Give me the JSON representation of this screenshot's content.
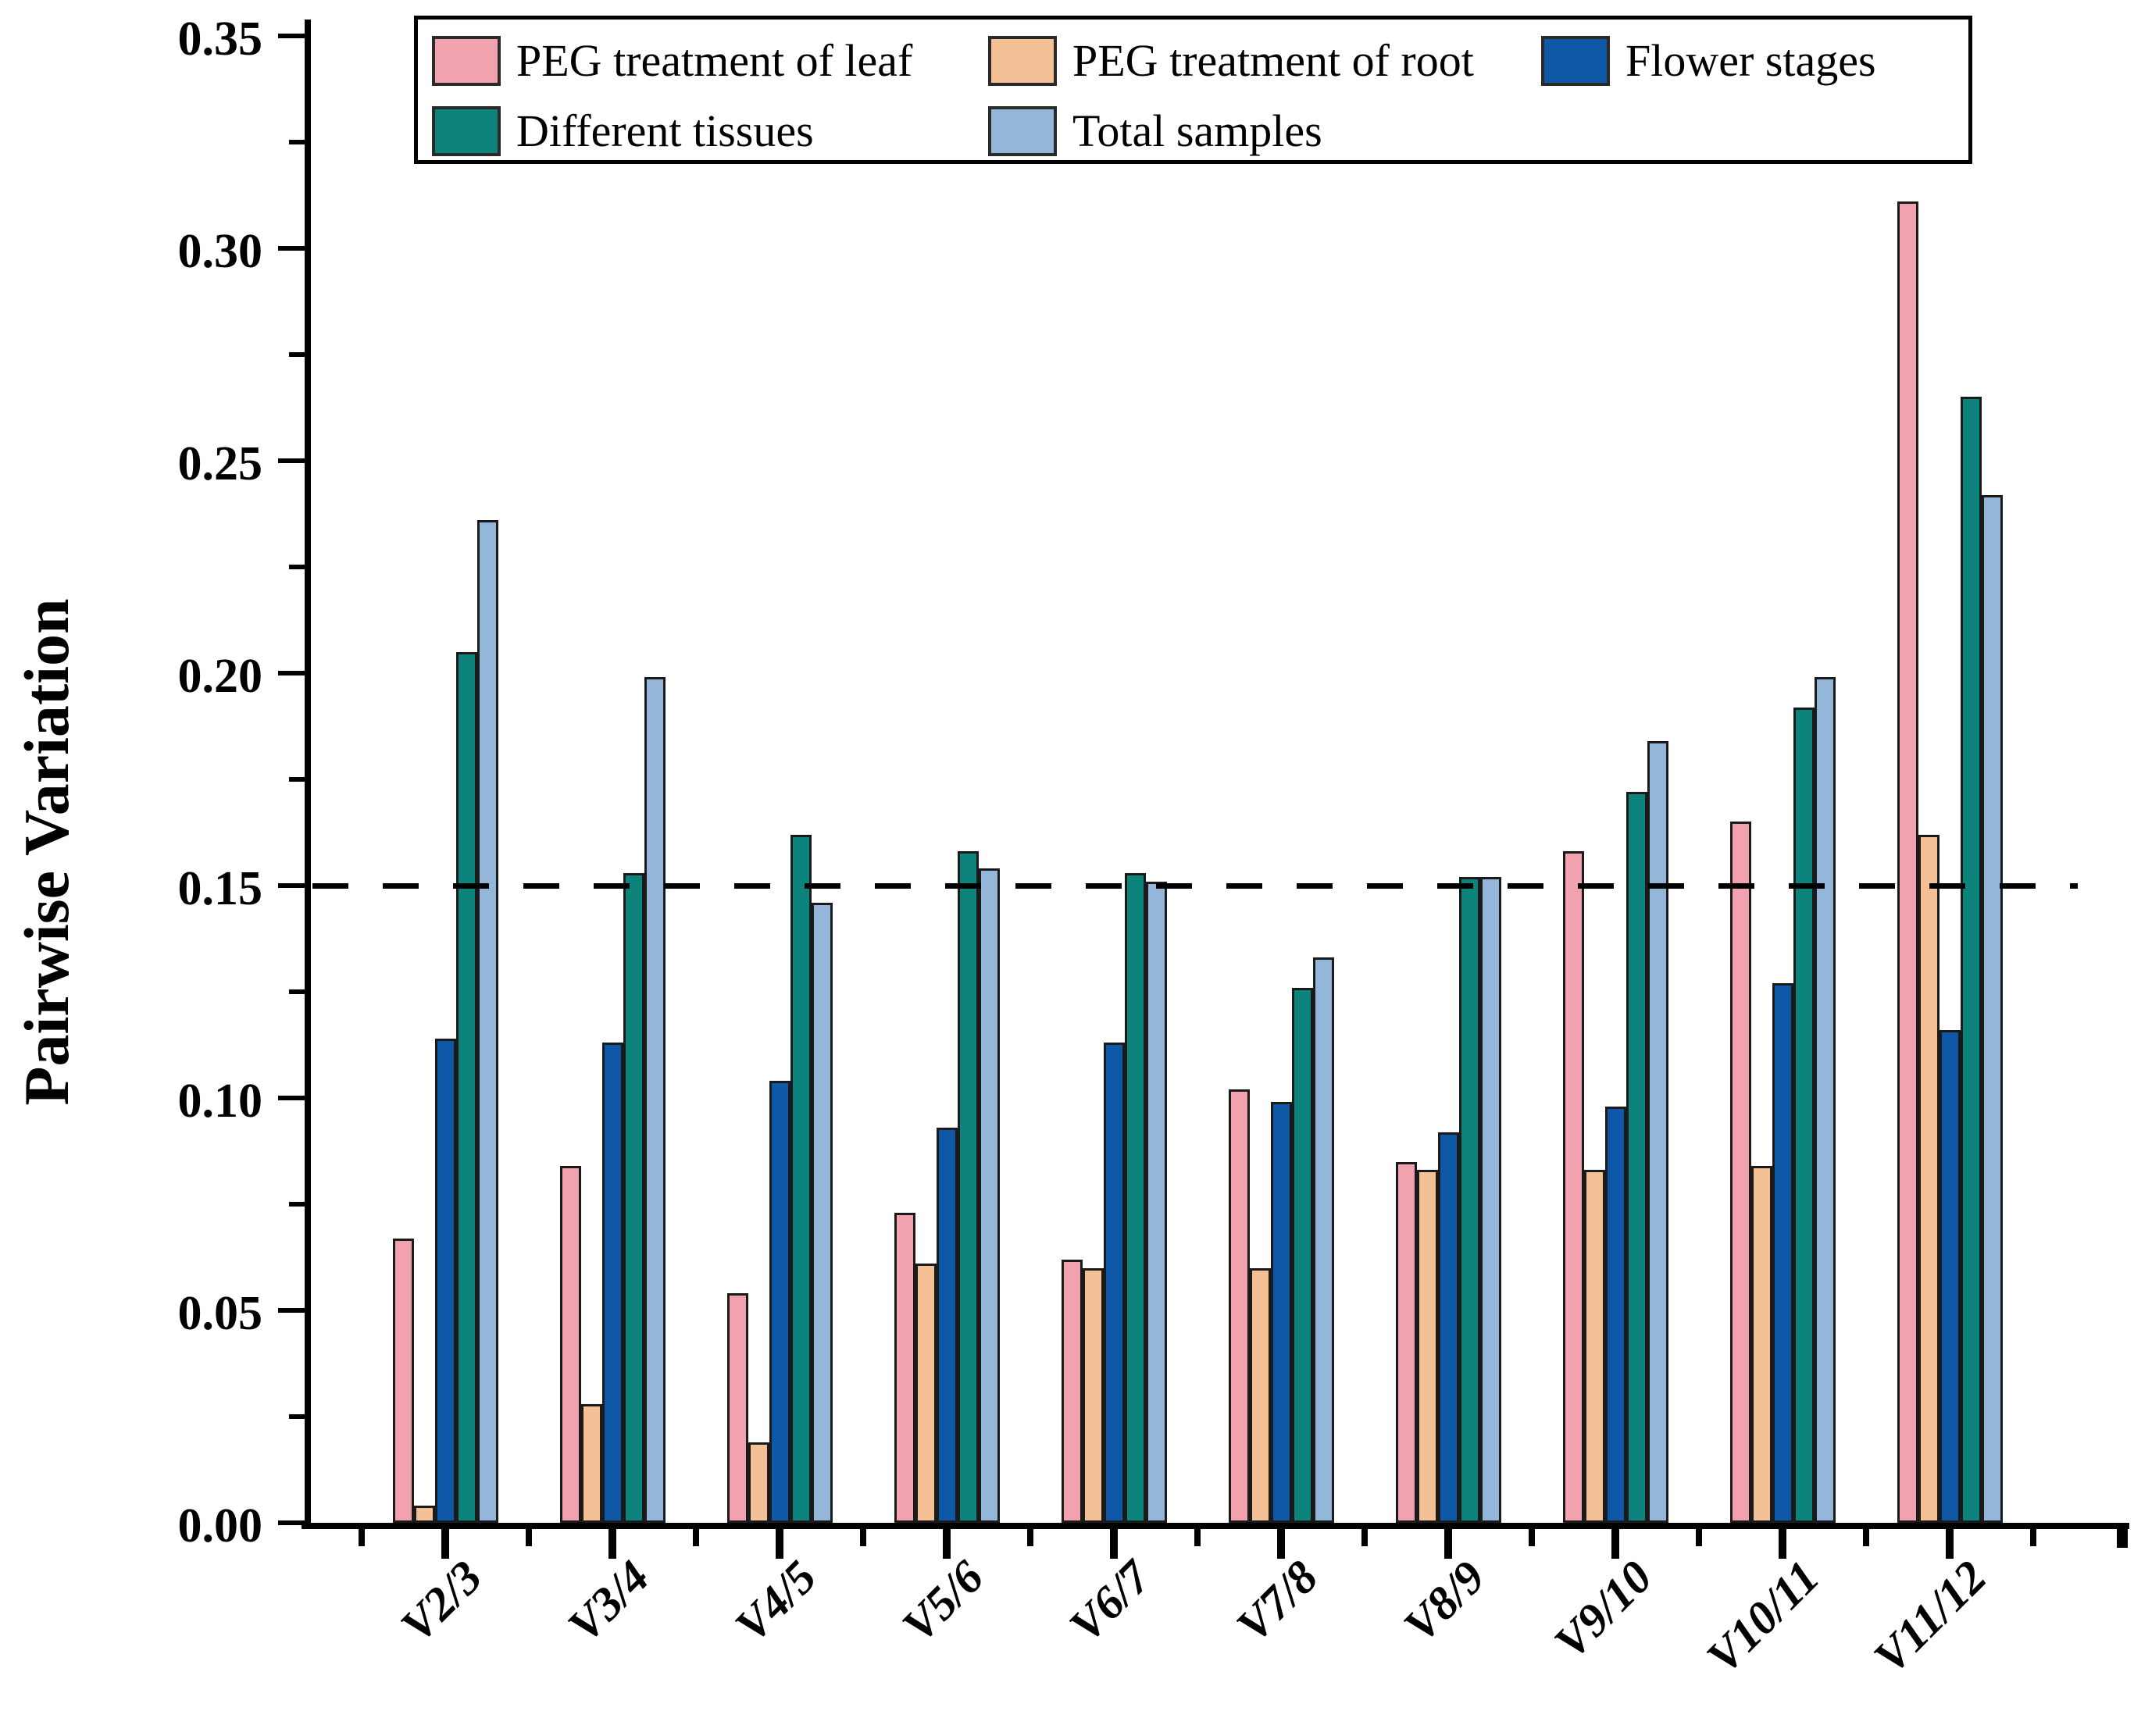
{
  "figure": {
    "ylabel": "Pairwise Variation"
  },
  "chart_data": {
    "type": "bar",
    "title": "",
    "xlabel": "",
    "ylabel": "Pairwise Variation",
    "ylim": [
      0,
      0.35
    ],
    "y_tick_step": 0.05,
    "y_minor_tick_step": 0.025,
    "y_tick_format_decimals": 2,
    "grid": false,
    "legend_position": "top-inside-box",
    "reference_line": {
      "value": 0.15,
      "style": "dashed",
      "color": "#000000"
    },
    "categories": [
      "V2/3",
      "V3/4",
      "V4/5",
      "V5/6",
      "V6/7",
      "V7/8",
      "V8/9",
      "V9/10",
      "V10/11",
      "V11/12"
    ],
    "series": [
      {
        "name": "PEG treatment of leaf",
        "color": "#F2A2AE",
        "values": [
          0.067,
          0.084,
          0.054,
          0.073,
          0.062,
          0.102,
          0.085,
          0.158,
          0.165,
          0.311
        ]
      },
      {
        "name": "PEG treatment of root",
        "color": "#F4C096",
        "values": [
          0.004,
          0.028,
          0.019,
          0.061,
          0.06,
          0.06,
          0.083,
          0.083,
          0.084,
          0.162
        ]
      },
      {
        "name": "Flower stages",
        "color": "#0F58A8",
        "values": [
          0.114,
          0.113,
          0.104,
          0.093,
          0.113,
          0.099,
          0.092,
          0.098,
          0.127,
          0.116
        ]
      },
      {
        "name": "Different tissues",
        "color": "#0C837B",
        "values": [
          0.205,
          0.153,
          0.162,
          0.158,
          0.153,
          0.126,
          0.152,
          0.172,
          0.192,
          0.265
        ]
      },
      {
        "name": "Total samples",
        "color": "#94B6D9",
        "values": [
          0.236,
          0.199,
          0.146,
          0.154,
          0.151,
          0.133,
          0.152,
          0.184,
          0.199,
          0.242
        ]
      }
    ],
    "legend_rows": [
      [
        "PEG treatment of leaf",
        "PEG treatment of root",
        "Flower stages"
      ],
      [
        "Different tissues",
        "Total samples"
      ]
    ]
  }
}
